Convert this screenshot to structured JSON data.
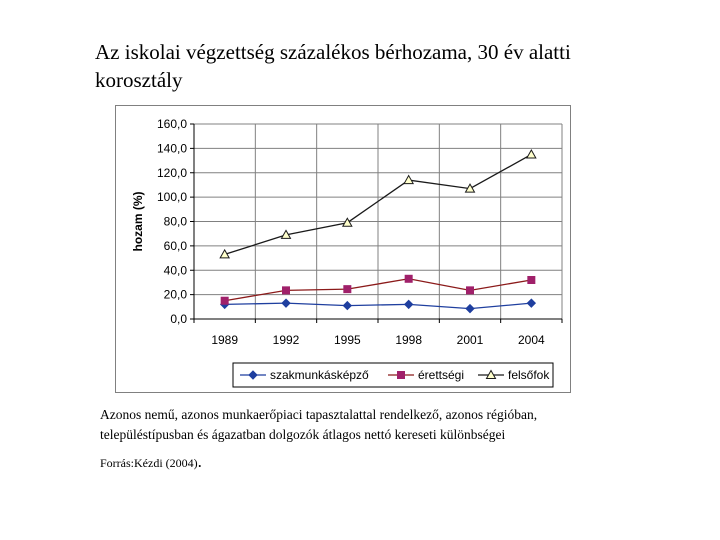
{
  "header": {
    "title_line1": "Az iskolai végzettség százalékos bérhozama, 30 év alatti",
    "title_line2": "korosztály"
  },
  "note": {
    "line1": "Azonos nemű, azonos munkaerőpiaci tapasztalattal  rendelkező, azonos régióban,",
    "line2": "településtípusban és ágazatban dolgozók átlagos  nettó kereseti különbségei"
  },
  "source": {
    "text": "Forrás:Kézdi (2004)",
    "suffix": "."
  },
  "colors": {
    "szakmunkaskepzo": "#1f3f9f",
    "erettsegi_marker": "#a0206a",
    "erettsegi_line": "#8b1a1a",
    "felsofok": "#1a1a1a",
    "felsofok_fill": "#ffffcc",
    "grid": "#808080"
  },
  "chart_data": {
    "type": "line",
    "title": "",
    "xlabel": "",
    "ylabel": "hozam (%)",
    "ylim": [
      0,
      160
    ],
    "yticks": [
      "0,0",
      "20,0",
      "40,0",
      "60,0",
      "80,0",
      "100,0",
      "120,0",
      "140,0",
      "160,0"
    ],
    "categories": [
      "1989",
      "1992",
      "1995",
      "1998",
      "2001",
      "2004"
    ],
    "grid": true,
    "legend_position": "bottom",
    "series": [
      {
        "name": "szakmunkásképző",
        "marker": "diamond",
        "values": [
          12,
          13,
          11,
          12,
          8.5,
          13
        ]
      },
      {
        "name": "érettségi",
        "marker": "square",
        "values": [
          15,
          23.5,
          24.5,
          33,
          23.5,
          32
        ]
      },
      {
        "name": "felsőfok",
        "marker": "triangle",
        "values": [
          53,
          69,
          79,
          114,
          107,
          135
        ]
      }
    ]
  }
}
